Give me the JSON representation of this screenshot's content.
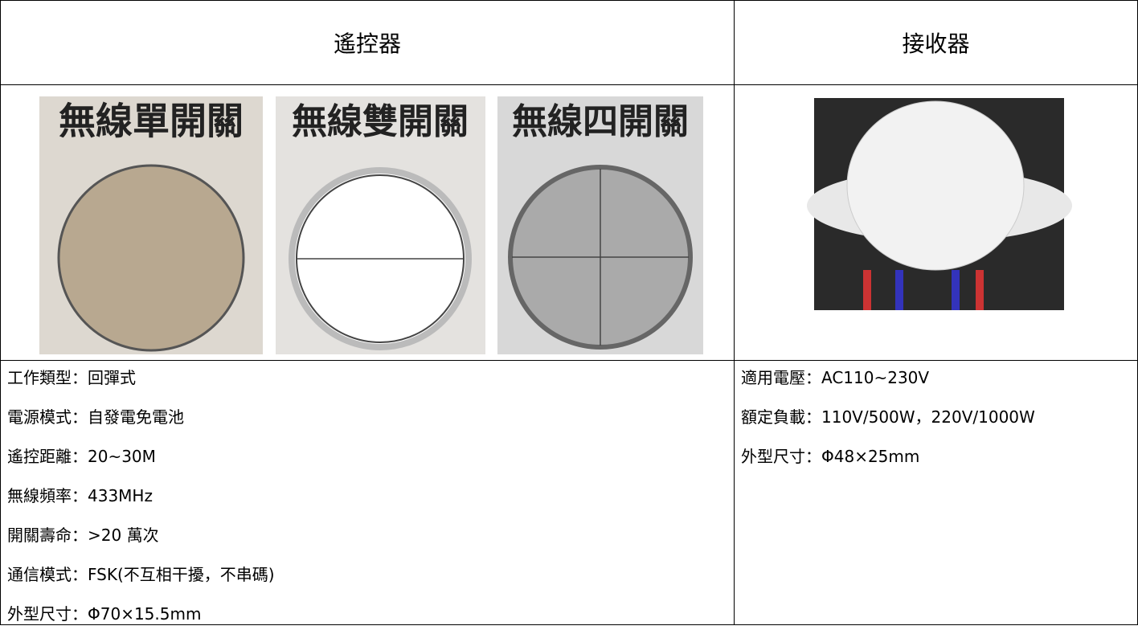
{
  "table": {
    "header": [
      "遙控器",
      "接收器"
    ],
    "remote_images": [
      "無線單開關",
      "無線雙開關",
      "無線四開關"
    ],
    "remote_specs": [
      "工作類型：回彈式",
      "電源模式：自發電免電池",
      "遙控距離：20~30M",
      "無線頻率：433MHz",
      "開關壽命：>20 萬次",
      "通信模式：FSK(不互相干擾，不串碼)",
      "外型尺寸：Φ70×15.5mm"
    ],
    "receiver_specs": [
      "適用電壓：AC110~230V",
      "額定負載：110V/500W，220V/1000W",
      "外型尺寸：Φ48×25mm"
    ]
  }
}
